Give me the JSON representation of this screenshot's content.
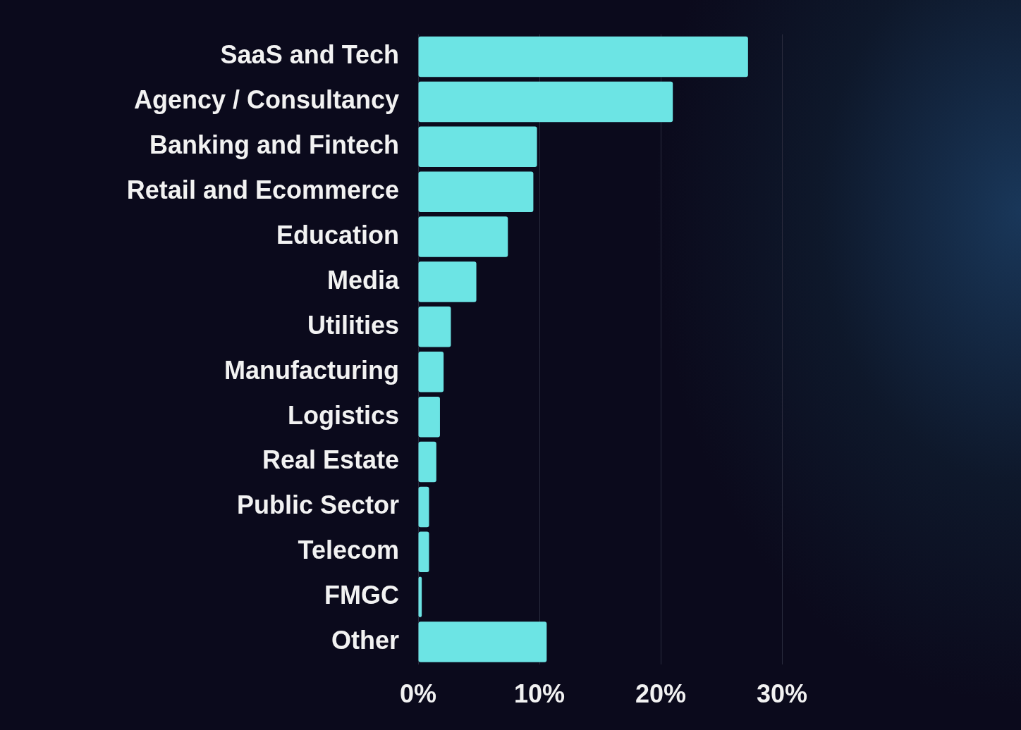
{
  "chart_data": {
    "type": "bar",
    "orientation": "horizontal",
    "categories": [
      "SaaS and Tech",
      "Agency / Consultancy",
      "Banking and Fintech",
      "Retail and Ecommerce",
      "Education",
      "Media",
      "Utilities",
      "Manufacturing",
      "Logistics",
      "Real Estate",
      "Public Sector",
      "Telecom",
      "FMGC",
      "Other"
    ],
    "values": [
      27.2,
      21.0,
      9.8,
      9.5,
      7.4,
      4.8,
      2.7,
      2.1,
      1.8,
      1.5,
      0.9,
      0.9,
      0.3,
      10.6
    ],
    "color": "#6ce4e4",
    "xlim": [
      0,
      30
    ],
    "xticks": [
      {
        "value": 0,
        "label": "0%"
      },
      {
        "value": 10,
        "label": "10%"
      },
      {
        "value": 20,
        "label": "20%"
      },
      {
        "value": 30,
        "label": "30%"
      }
    ],
    "grid": true
  }
}
